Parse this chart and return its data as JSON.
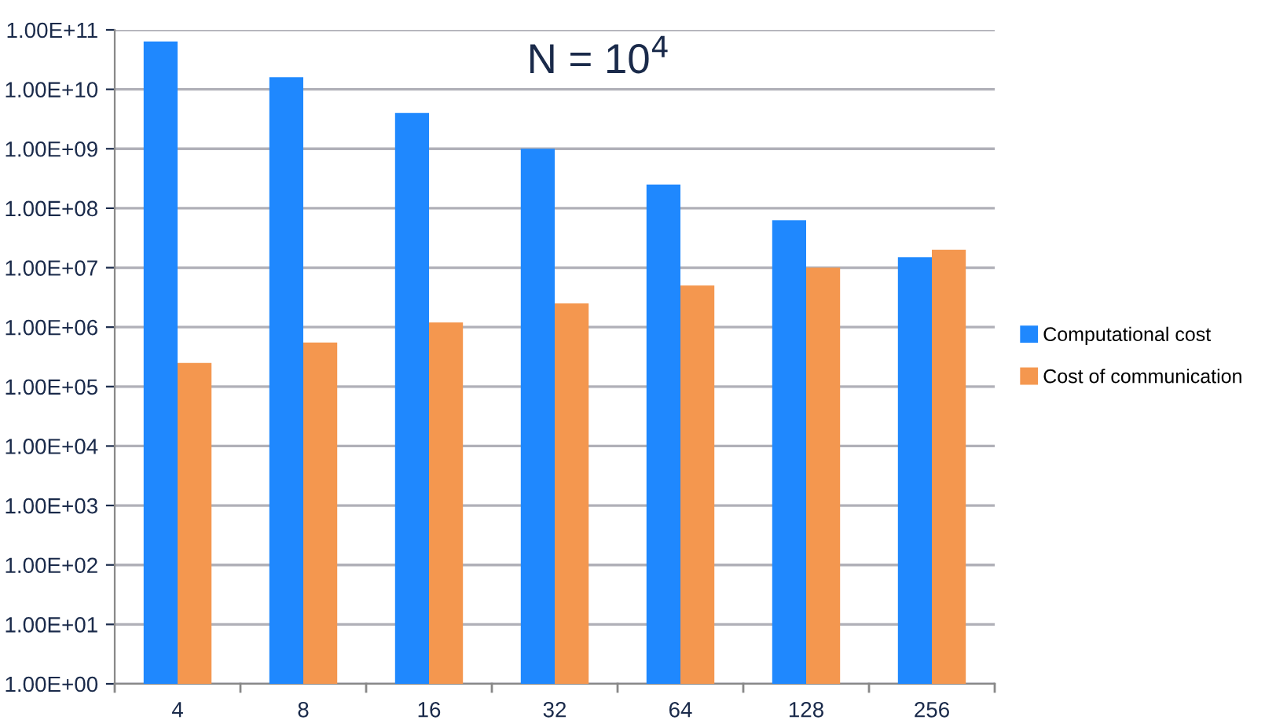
{
  "chart_data": {
    "type": "bar",
    "title": "N = 10$^{4}$",
    "categories": [
      "4",
      "8",
      "16",
      "32",
      "64",
      "128",
      "256"
    ],
    "series": [
      {
        "name": "Computational cost",
        "color": "#1f88fe",
        "values": [
          64000000000.0,
          16000000000.0,
          4000000000.0,
          1000000000.0,
          250000000.0,
          62500000.0,
          15000000.0
        ]
      },
      {
        "name": "Cost of communication",
        "color": "#f4974f",
        "values": [
          250000.0,
          550000.0,
          1200000.0,
          2500000.0,
          5000000.0,
          10000000.0,
          20000000.0
        ]
      }
    ],
    "log": true,
    "ylim": [
      1,
      100000000000.0
    ],
    "yticks": [
      {
        "value": 1,
        "label": "1.00E+00"
      },
      {
        "value": 10,
        "label": "1.00E+01"
      },
      {
        "value": 100,
        "label": "1.00E+02"
      },
      {
        "value": 1000,
        "label": "1.00E+03"
      },
      {
        "value": 10000,
        "label": "1.00E+04"
      },
      {
        "value": 100000,
        "label": "1.00E+05"
      },
      {
        "value": 1000000,
        "label": "1.00E+06"
      },
      {
        "value": 10000000,
        "label": "1.00E+07"
      },
      {
        "value": 100000000,
        "label": "1.00E+08"
      },
      {
        "value": 1000000000,
        "label": "1.00E+09"
      },
      {
        "value": 10000000000,
        "label": "1.00E+10"
      },
      {
        "value": 100000000000,
        "label": "1.00E+11"
      }
    ],
    "grid": "y",
    "legend": "right"
  }
}
